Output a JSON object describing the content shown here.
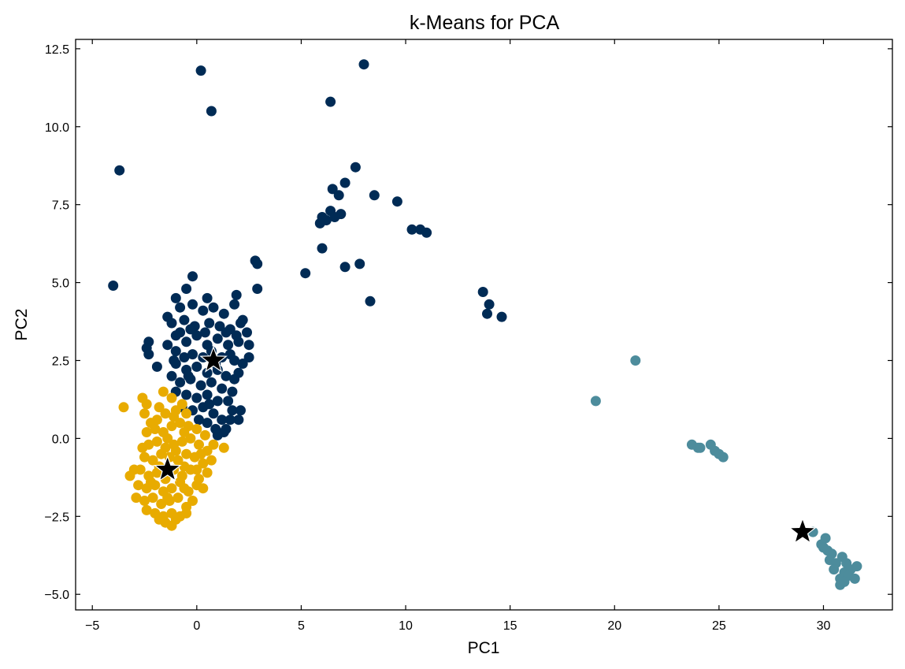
{
  "chart_data": {
    "type": "scatter",
    "title": "k-Means for PCA",
    "xlabel": "PC1",
    "ylabel": "PC2",
    "xlim": [
      -5.8,
      33.3
    ],
    "ylim": [
      -5.5,
      12.8
    ],
    "xticks": [
      -5,
      0,
      5,
      10,
      15,
      20,
      25,
      30
    ],
    "xtick_labels": [
      "−5",
      "0",
      "5",
      "10",
      "15",
      "20",
      "25",
      "30"
    ],
    "yticks": [
      -5.0,
      -2.5,
      0.0,
      2.5,
      5.0,
      7.5,
      10.0,
      12.5
    ],
    "ytick_labels": [
      "−5.0",
      "−2.5",
      "0.0",
      "2.5",
      "5.0",
      "7.5",
      "10.0",
      "12.5"
    ],
    "grid": false,
    "legend": "none",
    "series": [
      {
        "color": "#002b55",
        "points": [
          [
            -4.0,
            4.9
          ],
          [
            -3.7,
            8.6
          ],
          [
            0.2,
            11.8
          ],
          [
            0.7,
            10.5
          ],
          [
            8.0,
            12.0
          ],
          [
            6.4,
            10.8
          ],
          [
            7.6,
            8.7
          ],
          [
            6.5,
            8.0
          ],
          [
            7.1,
            8.2
          ],
          [
            6.8,
            7.8
          ],
          [
            8.5,
            7.8
          ],
          [
            9.6,
            7.6
          ],
          [
            6.0,
            7.1
          ],
          [
            6.2,
            7.0
          ],
          [
            6.4,
            7.3
          ],
          [
            6.6,
            7.1
          ],
          [
            6.9,
            7.2
          ],
          [
            5.9,
            6.9
          ],
          [
            10.3,
            6.7
          ],
          [
            10.7,
            6.7
          ],
          [
            11.0,
            6.6
          ],
          [
            6.0,
            6.1
          ],
          [
            5.2,
            5.3
          ],
          [
            7.1,
            5.5
          ],
          [
            7.8,
            5.6
          ],
          [
            2.8,
            5.7
          ],
          [
            2.9,
            5.6
          ],
          [
            2.9,
            4.8
          ],
          [
            8.3,
            4.4
          ],
          [
            13.7,
            4.7
          ],
          [
            14.0,
            4.3
          ],
          [
            13.9,
            4.0
          ],
          [
            14.6,
            3.9
          ],
          [
            -0.2,
            5.2
          ],
          [
            -0.5,
            4.8
          ],
          [
            0.5,
            4.5
          ],
          [
            1.9,
            4.6
          ],
          [
            1.8,
            4.3
          ],
          [
            -1.0,
            4.5
          ],
          [
            -0.8,
            4.2
          ],
          [
            -0.2,
            4.3
          ],
          [
            0.3,
            4.1
          ],
          [
            0.8,
            4.2
          ],
          [
            1.3,
            4.0
          ],
          [
            -1.4,
            3.9
          ],
          [
            -1.2,
            3.7
          ],
          [
            -0.6,
            3.8
          ],
          [
            -0.1,
            3.6
          ],
          [
            0.6,
            3.7
          ],
          [
            1.1,
            3.6
          ],
          [
            1.6,
            3.5
          ],
          [
            2.1,
            3.7
          ],
          [
            2.4,
            3.4
          ],
          [
            -2.3,
            3.1
          ],
          [
            -2.4,
            2.9
          ],
          [
            -1.4,
            3.0
          ],
          [
            -2.3,
            2.7
          ],
          [
            -1.0,
            3.3
          ],
          [
            -0.5,
            3.1
          ],
          [
            0.0,
            3.3
          ],
          [
            0.5,
            3.0
          ],
          [
            1.0,
            3.2
          ],
          [
            1.5,
            3.0
          ],
          [
            2.0,
            3.1
          ],
          [
            2.5,
            3.0
          ],
          [
            2.5,
            2.6
          ],
          [
            2.2,
            2.4
          ],
          [
            2.0,
            2.1
          ],
          [
            1.8,
            1.9
          ],
          [
            1.7,
            1.5
          ],
          [
            1.5,
            1.2
          ],
          [
            1.7,
            0.9
          ],
          [
            2.0,
            0.6
          ],
          [
            2.1,
            0.9
          ],
          [
            1.6,
            0.6
          ],
          [
            1.3,
            0.2
          ],
          [
            1.0,
            0.1
          ],
          [
            -1.0,
            2.8
          ],
          [
            -0.6,
            2.6
          ],
          [
            -0.2,
            2.7
          ],
          [
            0.3,
            2.6
          ],
          [
            0.7,
            2.8
          ],
          [
            1.2,
            2.6
          ],
          [
            1.6,
            2.7
          ],
          [
            -1.0,
            2.4
          ],
          [
            -0.5,
            2.2
          ],
          [
            0.0,
            2.3
          ],
          [
            0.5,
            2.1
          ],
          [
            1.0,
            2.2
          ],
          [
            1.4,
            2.0
          ],
          [
            -1.2,
            2.0
          ],
          [
            -0.8,
            1.8
          ],
          [
            -0.3,
            1.9
          ],
          [
            0.2,
            1.7
          ],
          [
            0.7,
            1.8
          ],
          [
            1.2,
            1.6
          ],
          [
            -1.0,
            1.5
          ],
          [
            -0.5,
            1.4
          ],
          [
            0.0,
            1.3
          ],
          [
            0.5,
            1.4
          ],
          [
            1.0,
            1.2
          ],
          [
            -0.7,
            1.0
          ],
          [
            -0.2,
            0.9
          ],
          [
            0.3,
            1.0
          ],
          [
            0.8,
            0.8
          ],
          [
            1.2,
            0.6
          ],
          [
            0.5,
            0.5
          ],
          [
            0.9,
            0.3
          ],
          [
            -1.9,
            2.3
          ],
          [
            -1.1,
            2.5
          ],
          [
            -0.3,
            3.5
          ],
          [
            0.4,
            3.4
          ],
          [
            1.4,
            3.4
          ],
          [
            1.9,
            3.3
          ],
          [
            2.2,
            3.8
          ],
          [
            0.9,
            2.4
          ],
          [
            -0.4,
            2.0
          ],
          [
            0.1,
            0.6
          ],
          [
            1.4,
            0.3
          ],
          [
            0.6,
            1.1
          ],
          [
            1.8,
            2.5
          ],
          [
            -0.8,
            3.4
          ]
        ]
      },
      {
        "color": "#e8ab00",
        "points": [
          [
            -3.5,
            1.0
          ],
          [
            -2.6,
            1.3
          ],
          [
            -2.4,
            1.1
          ],
          [
            -1.6,
            1.5
          ],
          [
            -1.2,
            1.3
          ],
          [
            -0.7,
            1.1
          ],
          [
            -2.5,
            0.8
          ],
          [
            -2.2,
            0.5
          ],
          [
            -1.9,
            0.6
          ],
          [
            -1.5,
            0.8
          ],
          [
            -1.0,
            0.9
          ],
          [
            -0.5,
            0.8
          ],
          [
            -2.4,
            0.2
          ],
          [
            -2.0,
            0.3
          ],
          [
            -1.6,
            0.2
          ],
          [
            -1.2,
            0.4
          ],
          [
            -0.8,
            0.5
          ],
          [
            -0.4,
            0.4
          ],
          [
            0.0,
            0.3
          ],
          [
            0.4,
            0.1
          ],
          [
            -2.3,
            -0.2
          ],
          [
            -1.9,
            -0.1
          ],
          [
            -1.5,
            -0.3
          ],
          [
            -1.1,
            -0.2
          ],
          [
            -0.7,
            -0.1
          ],
          [
            -0.3,
            0.0
          ],
          [
            0.1,
            -0.2
          ],
          [
            0.5,
            -0.4
          ],
          [
            0.8,
            -0.2
          ],
          [
            1.3,
            -0.3
          ],
          [
            -2.5,
            -0.6
          ],
          [
            -2.1,
            -0.7
          ],
          [
            -1.7,
            -0.5
          ],
          [
            -1.3,
            -0.6
          ],
          [
            -0.9,
            -0.7
          ],
          [
            -0.5,
            -0.5
          ],
          [
            -0.1,
            -0.6
          ],
          [
            0.3,
            -0.8
          ],
          [
            0.7,
            -0.7
          ],
          [
            -3.0,
            -1.0
          ],
          [
            -2.7,
            -1.0
          ],
          [
            -2.3,
            -1.2
          ],
          [
            -1.9,
            -1.1
          ],
          [
            -1.5,
            -1.3
          ],
          [
            -1.1,
            -1.0
          ],
          [
            -0.7,
            -1.2
          ],
          [
            -0.3,
            -1.0
          ],
          [
            0.1,
            -1.3
          ],
          [
            0.5,
            -1.1
          ],
          [
            -3.2,
            -1.2
          ],
          [
            -2.8,
            -1.5
          ],
          [
            -2.4,
            -1.6
          ],
          [
            -2.0,
            -1.5
          ],
          [
            -1.6,
            -1.7
          ],
          [
            -1.2,
            -1.6
          ],
          [
            -0.8,
            -1.4
          ],
          [
            -0.4,
            -1.7
          ],
          [
            0.0,
            -1.5
          ],
          [
            0.3,
            -1.6
          ],
          [
            -2.9,
            -1.9
          ],
          [
            -2.5,
            -2.0
          ],
          [
            -2.1,
            -1.9
          ],
          [
            -1.7,
            -2.1
          ],
          [
            -1.3,
            -2.0
          ],
          [
            -0.9,
            -1.9
          ],
          [
            -0.5,
            -2.2
          ],
          [
            -0.2,
            -2.0
          ],
          [
            -2.4,
            -2.3
          ],
          [
            -2.0,
            -2.4
          ],
          [
            -1.6,
            -2.5
          ],
          [
            -1.2,
            -2.4
          ],
          [
            -0.8,
            -2.5
          ],
          [
            -0.5,
            -2.4
          ],
          [
            -1.5,
            -2.7
          ],
          [
            -1.2,
            -2.8
          ],
          [
            -1.8,
            -2.6
          ],
          [
            -1.0,
            -2.6
          ],
          [
            -1.4,
            0.0
          ],
          [
            -0.6,
            -0.9
          ],
          [
            0.2,
            -0.5
          ],
          [
            -2.6,
            -0.3
          ],
          [
            -1.8,
            -0.9
          ],
          [
            -1.0,
            -0.4
          ],
          [
            0.0,
            -1.0
          ],
          [
            -0.6,
            0.2
          ],
          [
            -2.2,
            -1.4
          ],
          [
            -1.4,
            -1.9
          ],
          [
            -0.6,
            -1.6
          ],
          [
            -1.1,
            0.7
          ],
          [
            -1.8,
            1.0
          ]
        ]
      },
      {
        "color": "#4d8c9c",
        "points": [
          [
            19.1,
            1.2
          ],
          [
            21.0,
            2.5
          ],
          [
            23.7,
            -0.2
          ],
          [
            24.0,
            -0.3
          ],
          [
            24.1,
            -0.3
          ],
          [
            24.6,
            -0.2
          ],
          [
            24.8,
            -0.4
          ],
          [
            25.0,
            -0.5
          ],
          [
            25.2,
            -0.6
          ],
          [
            29.5,
            -3.0
          ],
          [
            30.1,
            -3.2
          ],
          [
            29.9,
            -3.4
          ],
          [
            30.0,
            -3.5
          ],
          [
            30.2,
            -3.6
          ],
          [
            30.4,
            -3.7
          ],
          [
            30.3,
            -3.9
          ],
          [
            30.6,
            -4.0
          ],
          [
            30.9,
            -3.8
          ],
          [
            31.1,
            -4.0
          ],
          [
            31.0,
            -4.3
          ],
          [
            31.3,
            -4.2
          ],
          [
            31.6,
            -4.1
          ],
          [
            30.8,
            -4.5
          ],
          [
            31.2,
            -4.4
          ],
          [
            31.5,
            -4.5
          ],
          [
            30.8,
            -4.7
          ],
          [
            31.0,
            -4.6
          ],
          [
            30.5,
            -4.2
          ]
        ]
      }
    ],
    "centroids": [
      [
        0.8,
        2.5
      ],
      [
        -1.4,
        -1.0
      ],
      [
        29.0,
        -3.0
      ]
    ],
    "centroid_color": "#000000"
  }
}
